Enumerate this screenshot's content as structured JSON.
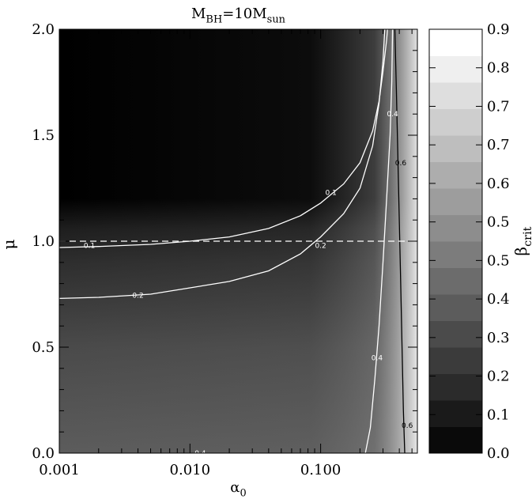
{
  "chart_data": {
    "type": "heatmap",
    "title": {
      "base": "M",
      "base_sub": "BH",
      "mid": "=10M",
      "mid_sub": "sun"
    },
    "xlabel": {
      "base": "α",
      "sub": "0"
    },
    "ylabel": "μ",
    "xscale": "log",
    "xlim": [
      0.001,
      0.55
    ],
    "ylim": [
      0.0,
      2.0
    ],
    "x_ticks": [
      {
        "value": 0.001,
        "label": "0.001"
      },
      {
        "value": 0.01,
        "label": "0.010"
      },
      {
        "value": 0.1,
        "label": "0.100"
      }
    ],
    "y_ticks": [
      {
        "value": 0.0,
        "label": "0.0"
      },
      {
        "value": 0.5,
        "label": "0.5"
      },
      {
        "value": 1.0,
        "label": "1.0"
      },
      {
        "value": 1.5,
        "label": "1.5"
      },
      {
        "value": 2.0,
        "label": "2.0"
      }
    ],
    "colorbar": {
      "label": {
        "base": "β",
        "sub": "crit"
      },
      "range": [
        0.0,
        0.9
      ],
      "levels": 16,
      "tick_labels": [
        "0.0",
        "0.1",
        "0.2",
        "0.3",
        "0.4",
        "0.5",
        "0.5",
        "0.6",
        "0.7",
        "0.7",
        "0.8",
        "0.9"
      ]
    },
    "reference_line": {
      "y": 1.0,
      "style": "dashed",
      "color": "#ffffff"
    },
    "contours": [
      {
        "level": "0.1",
        "points": [
          [
            0.001,
            0.97
          ],
          [
            0.002,
            0.975
          ],
          [
            0.005,
            0.985
          ],
          [
            0.01,
            1.0
          ],
          [
            0.02,
            1.02
          ],
          [
            0.04,
            1.06
          ],
          [
            0.07,
            1.12
          ],
          [
            0.1,
            1.18
          ],
          [
            0.15,
            1.27
          ],
          [
            0.2,
            1.37
          ],
          [
            0.25,
            1.52
          ],
          [
            0.28,
            1.66
          ],
          [
            0.3,
            1.8
          ],
          [
            0.32,
            1.95
          ],
          [
            0.325,
            2.0
          ]
        ],
        "labels": [
          {
            "x": 0.0017,
            "y": 0.98,
            "text": "0.1"
          },
          {
            "x": 0.12,
            "y": 1.23,
            "text": "0.1"
          }
        ]
      },
      {
        "level": "0.2",
        "points": [
          [
            0.001,
            0.73
          ],
          [
            0.002,
            0.735
          ],
          [
            0.005,
            0.75
          ],
          [
            0.01,
            0.78
          ],
          [
            0.02,
            0.81
          ],
          [
            0.04,
            0.86
          ],
          [
            0.07,
            0.94
          ],
          [
            0.1,
            1.02
          ],
          [
            0.15,
            1.13
          ],
          [
            0.2,
            1.25
          ],
          [
            0.25,
            1.45
          ],
          [
            0.28,
            1.65
          ],
          [
            0.3,
            1.85
          ],
          [
            0.31,
            2.0
          ]
        ],
        "labels": [
          {
            "x": 0.004,
            "y": 0.745,
            "text": "0.2"
          },
          {
            "x": 0.1,
            "y": 0.98,
            "text": "0.2"
          }
        ]
      },
      {
        "level": "0.4",
        "points": [
          [
            0.22,
            0.0
          ],
          [
            0.24,
            0.12
          ],
          [
            0.26,
            0.35
          ],
          [
            0.28,
            0.6
          ],
          [
            0.3,
            0.9
          ],
          [
            0.32,
            1.2
          ],
          [
            0.34,
            1.5
          ],
          [
            0.35,
            1.75
          ],
          [
            0.355,
            2.0
          ]
        ],
        "labels": [
          {
            "x": 0.27,
            "y": 0.45,
            "text": "0.4"
          },
          {
            "x": 0.355,
            "y": 1.6,
            "text": "0.4"
          },
          {
            "x": 0.012,
            "y": 0.0,
            "text": "0.4"
          }
        ]
      },
      {
        "level": "0.6",
        "points": [
          [
            0.44,
            0.0
          ],
          [
            0.43,
            0.2
          ],
          [
            0.42,
            0.5
          ],
          [
            0.41,
            0.8
          ],
          [
            0.4,
            1.1
          ],
          [
            0.39,
            1.4
          ],
          [
            0.38,
            1.7
          ],
          [
            0.37,
            2.0
          ]
        ],
        "labels": [
          {
            "x": 0.46,
            "y": 0.13,
            "text": "0.6"
          },
          {
            "x": 0.41,
            "y": 1.37,
            "text": "0.6"
          }
        ]
      }
    ]
  }
}
